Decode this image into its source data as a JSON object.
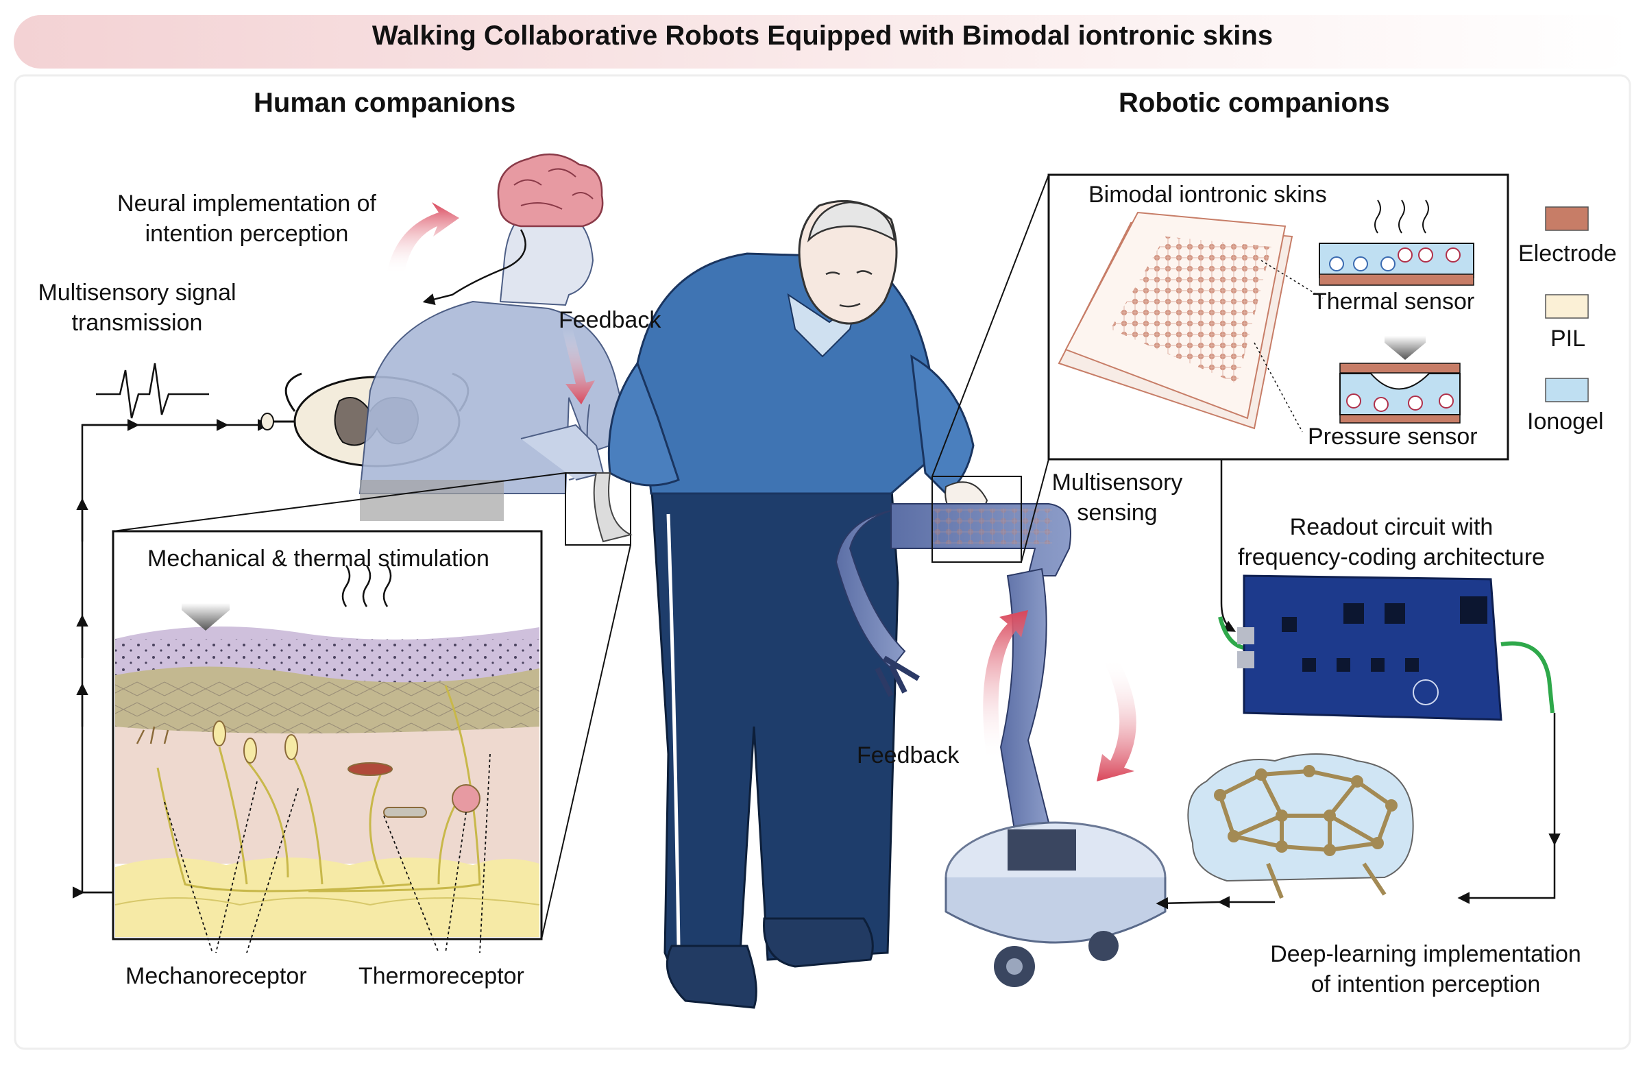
{
  "title": "Walking Collaborative Robots Equipped with Bimodal iontronic skins",
  "sections": {
    "human": "Human companions",
    "robotic": "Robotic companions"
  },
  "labels": {
    "neural_line1": "Neural implementation of",
    "neural_line2": "intention perception",
    "multisensory_line1": "Multisensory  signal",
    "multisensory_line2": "transmission",
    "feedback_top": "Feedback",
    "stimulation": "Mechanical  &  thermal stimulation",
    "mechanoreceptor": "Mechanoreceptor",
    "thermoreceptor": "Thermoreceptor",
    "bimodal_skins": "Bimodal iontronic skins",
    "thermal_sensor": "Thermal sensor",
    "pressure_sensor": "Pressure sensor",
    "sensing_line1": "Multisensory",
    "sensing_line2": "sensing",
    "readout_line1": "Readout circuit with",
    "readout_line2": "frequency-coding architecture",
    "feedback_bottom": "Feedback",
    "deep_line1": "Deep-learning implementation",
    "deep_line2": "of intention perception"
  },
  "legend": [
    {
      "label": "Electrode",
      "color": "#c77d67"
    },
    {
      "label": "PIL",
      "color": "#fbf0d6"
    },
    {
      "label": "Ionogel",
      "color": "#bfdff2"
    }
  ],
  "colors": {
    "header_band": "#f6dede",
    "shirt_blue": "#3f74b3",
    "pants_navy": "#1e3d6b",
    "feedback_red": "#d9465a",
    "circuit_blue": "#1d3a8c",
    "cable_green": "#2ea84a",
    "brain_pink": "#e79aa2"
  }
}
